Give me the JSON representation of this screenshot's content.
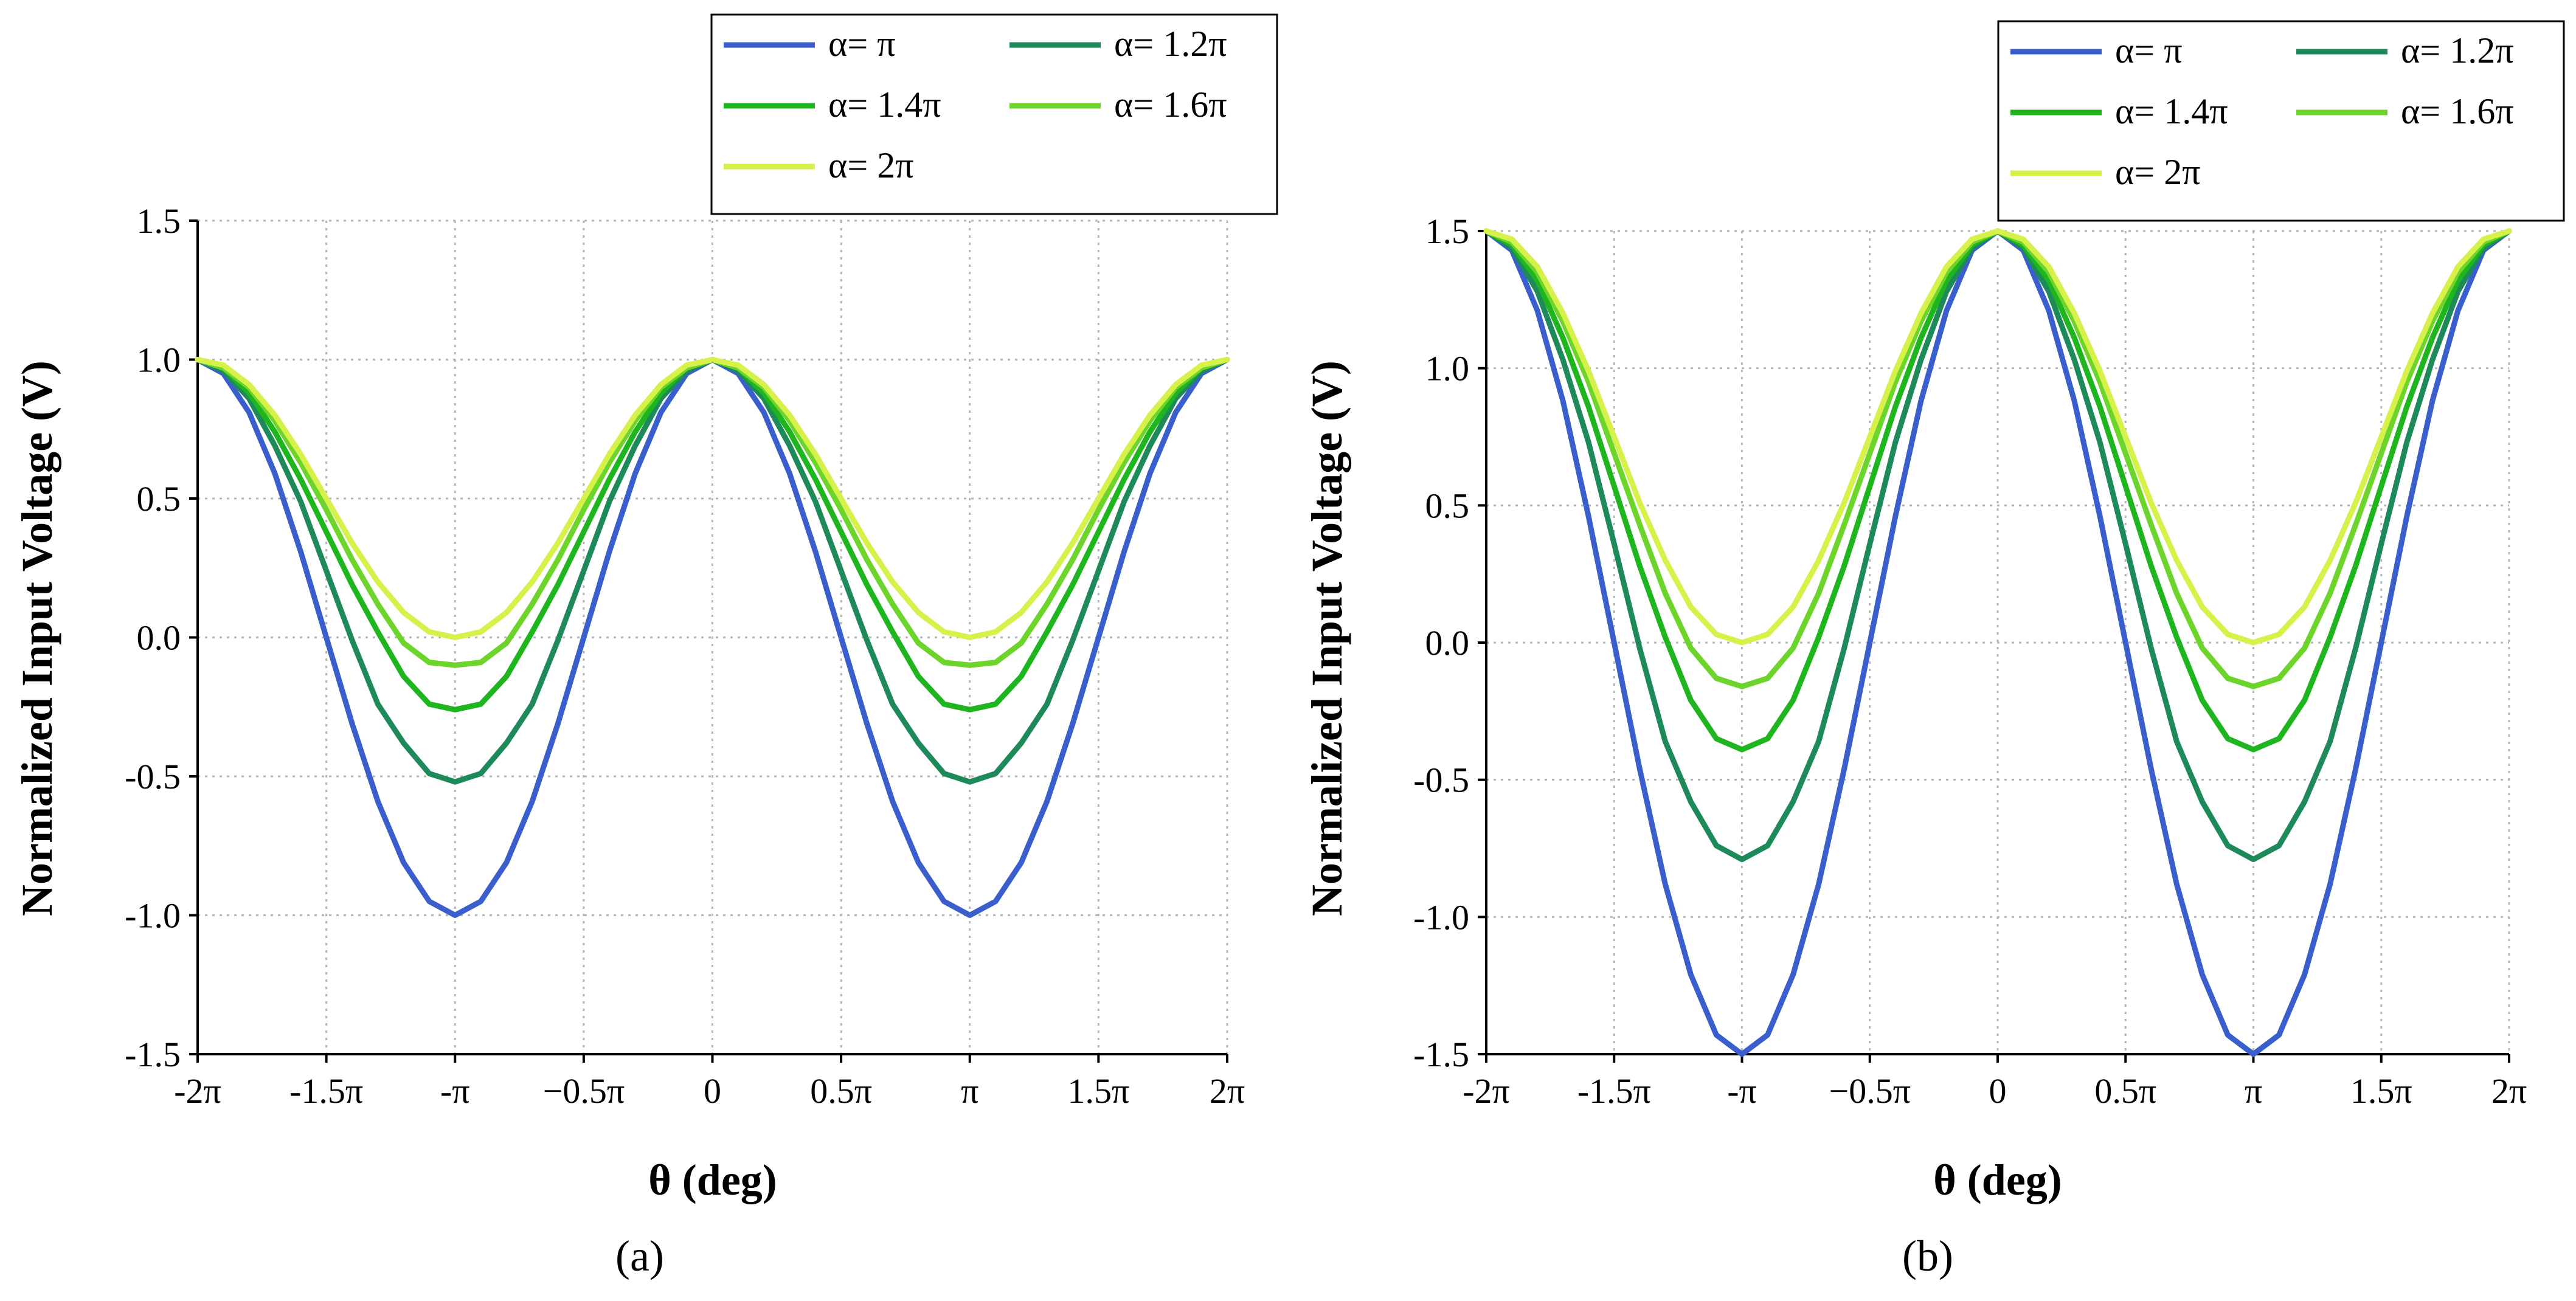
{
  "chart_data": [
    {
      "type": "line",
      "panel": "(a)",
      "panel_letter": "a",
      "xlabel": "θ (deg)",
      "ylabel": "Normalized Input Voltage (V)",
      "xlim": [
        -6.2832,
        6.2832
      ],
      "ylim": [
        -1.5,
        1.5
      ],
      "x_ticks": [
        -6.2832,
        -4.7124,
        -3.1416,
        -1.5708,
        0,
        1.5708,
        3.1416,
        4.7124,
        6.2832
      ],
      "x_tick_labels": [
        "-2π",
        "-1.5π",
        "-π",
        "−0.5π",
        "0",
        "0.5π",
        "π",
        "1.5π",
        "2π"
      ],
      "y_ticks": [
        1.5,
        1.0,
        0.5,
        0.0,
        -0.5,
        -1.0,
        -1.5
      ],
      "y_tick_labels": [
        "1.5",
        "1.0",
        "0.5",
        "0.0",
        "-0.5",
        "-1.0",
        "-1.5"
      ],
      "grid": true,
      "legend_position": "top-right",
      "x": [
        -6.2832,
        -5.969,
        -5.6549,
        -5.3407,
        -5.0265,
        -4.7124,
        -4.3982,
        -4.0841,
        -3.7699,
        -3.4558,
        -3.1416,
        -2.8274,
        -2.5133,
        -2.1991,
        -1.885,
        -1.5708,
        -1.2566,
        -0.9425,
        -0.6283,
        -0.3142,
        0,
        0.3142,
        0.6283,
        0.9425,
        1.2566,
        1.5708,
        1.885,
        2.1991,
        2.5133,
        2.8274,
        3.1416,
        3.4558,
        3.7699,
        4.0841,
        4.3982,
        4.7124,
        5.0265,
        5.3407,
        5.6549,
        5.969,
        6.2832
      ],
      "series": [
        {
          "name": "α= π",
          "color": "#3a5fcd",
          "values": [
            1.0,
            0.95,
            0.81,
            0.59,
            0.31,
            0.0,
            -0.31,
            -0.59,
            -0.81,
            -0.95,
            -1.0,
            -0.95,
            -0.81,
            -0.59,
            -0.31,
            0.0,
            0.31,
            0.59,
            0.81,
            0.95,
            1.0,
            0.95,
            0.81,
            0.59,
            0.31,
            0.0,
            -0.31,
            -0.59,
            -0.81,
            -0.95,
            -1.0,
            -0.95,
            -0.81,
            -0.59,
            -0.31,
            0.0,
            0.31,
            0.59,
            0.81,
            0.95,
            1.0
          ]
        },
        {
          "name": "α= 1.2π",
          "color": "#1e8a5a",
          "values": [
            1.0,
            0.96,
            0.86,
            0.69,
            0.49,
            0.24,
            -0.01,
            -0.24,
            -0.38,
            -0.49,
            -0.52,
            -0.49,
            -0.38,
            -0.24,
            -0.01,
            0.24,
            0.49,
            0.69,
            0.86,
            0.96,
            1.0,
            0.96,
            0.86,
            0.69,
            0.49,
            0.24,
            -0.01,
            -0.24,
            -0.38,
            -0.49,
            -0.52,
            -0.49,
            -0.38,
            -0.24,
            -0.01,
            0.24,
            0.49,
            0.69,
            0.86,
            0.96,
            1.0
          ]
        },
        {
          "name": "α= 1.4π",
          "color": "#1fb51f",
          "values": [
            1.0,
            0.97,
            0.88,
            0.74,
            0.57,
            0.38,
            0.19,
            0.02,
            -0.14,
            -0.24,
            -0.26,
            -0.24,
            -0.14,
            0.02,
            0.19,
            0.38,
            0.57,
            0.74,
            0.88,
            0.97,
            1.0,
            0.97,
            0.88,
            0.74,
            0.57,
            0.38,
            0.19,
            0.02,
            -0.14,
            -0.24,
            -0.26,
            -0.24,
            -0.14,
            0.02,
            0.19,
            0.38,
            0.57,
            0.74,
            0.88,
            0.97,
            1.0
          ]
        },
        {
          "name": "α= 1.6π",
          "color": "#6cd42a",
          "values": [
            1.0,
            0.97,
            0.9,
            0.78,
            0.63,
            0.46,
            0.28,
            0.12,
            -0.02,
            -0.09,
            -0.1,
            -0.09,
            -0.02,
            0.12,
            0.28,
            0.46,
            0.63,
            0.78,
            0.9,
            0.97,
            1.0,
            0.97,
            0.9,
            0.78,
            0.63,
            0.46,
            0.28,
            0.12,
            -0.02,
            -0.09,
            -0.1,
            -0.09,
            -0.02,
            0.12,
            0.28,
            0.46,
            0.63,
            0.78,
            0.9,
            0.97,
            1.0
          ]
        },
        {
          "name": "α= 2π",
          "color": "#d6f24a",
          "values": [
            1.0,
            0.98,
            0.91,
            0.8,
            0.66,
            0.5,
            0.34,
            0.2,
            0.09,
            0.02,
            0.0,
            0.02,
            0.09,
            0.2,
            0.34,
            0.5,
            0.66,
            0.8,
            0.91,
            0.98,
            1.0,
            0.98,
            0.91,
            0.8,
            0.66,
            0.5,
            0.34,
            0.2,
            0.09,
            0.02,
            0.0,
            0.02,
            0.09,
            0.2,
            0.34,
            0.5,
            0.66,
            0.8,
            0.91,
            0.98,
            1.0
          ]
        }
      ]
    },
    {
      "type": "line",
      "panel": "(b)",
      "panel_letter": "b",
      "xlabel": "θ (deg)",
      "ylabel": "Normalized Input Voltage (V)",
      "xlim": [
        -6.2832,
        6.2832
      ],
      "ylim": [
        -1.5,
        1.5
      ],
      "x_ticks": [
        -6.2832,
        -4.7124,
        -3.1416,
        -1.5708,
        0,
        1.5708,
        3.1416,
        4.7124,
        6.2832
      ],
      "x_tick_labels": [
        "-2π",
        "-1.5π",
        "-π",
        "−0.5π",
        "0",
        "0.5π",
        "π",
        "1.5π",
        "2π"
      ],
      "y_ticks": [
        1.5,
        1.0,
        0.5,
        0.0,
        -0.5,
        -1.0,
        -1.5
      ],
      "y_tick_labels": [
        "1.5",
        "1.0",
        "0.5",
        "0.0",
        "-0.5",
        "-1.0",
        "-1.5"
      ],
      "grid": true,
      "legend_position": "top-right",
      "x": [
        -6.2832,
        -5.969,
        -5.6549,
        -5.3407,
        -5.0265,
        -4.7124,
        -4.3982,
        -4.0841,
        -3.7699,
        -3.4558,
        -3.1416,
        -2.8274,
        -2.5133,
        -2.1991,
        -1.885,
        -1.5708,
        -1.2566,
        -0.9425,
        -0.6283,
        -0.3142,
        0,
        0.3142,
        0.6283,
        0.9425,
        1.2566,
        1.5708,
        1.885,
        2.1991,
        2.5133,
        2.8274,
        3.1416,
        3.4558,
        3.7699,
        4.0841,
        4.3982,
        4.7124,
        5.0265,
        5.3407,
        5.6549,
        5.969,
        6.2832
      ],
      "series": [
        {
          "name": "α= π",
          "color": "#3a5fcd",
          "values": [
            1.5,
            1.43,
            1.21,
            0.88,
            0.46,
            0.0,
            -0.46,
            -0.88,
            -1.21,
            -1.43,
            -1.5,
            -1.43,
            -1.21,
            -0.88,
            -0.46,
            0.0,
            0.46,
            0.88,
            1.21,
            1.43,
            1.5,
            1.43,
            1.21,
            0.88,
            0.46,
            0.0,
            -0.46,
            -0.88,
            -1.21,
            -1.43,
            -1.5,
            -1.43,
            -1.21,
            -0.88,
            -0.46,
            0.0,
            0.46,
            0.88,
            1.21,
            1.43,
            1.5
          ]
        },
        {
          "name": "α= 1.2π",
          "color": "#1e8a5a",
          "values": [
            1.5,
            1.44,
            1.28,
            1.03,
            0.73,
            0.36,
            -0.02,
            -0.36,
            -0.58,
            -0.74,
            -0.79,
            -0.74,
            -0.58,
            -0.36,
            -0.02,
            0.36,
            0.73,
            1.03,
            1.28,
            1.44,
            1.5,
            1.44,
            1.28,
            1.03,
            0.73,
            0.36,
            -0.02,
            -0.36,
            -0.58,
            -0.74,
            -0.79,
            -0.74,
            -0.58,
            -0.36,
            -0.02,
            0.36,
            0.73,
            1.03,
            1.28,
            1.44,
            1.5
          ]
        },
        {
          "name": "α= 1.4π",
          "color": "#1fb51f",
          "values": [
            1.5,
            1.45,
            1.32,
            1.11,
            0.86,
            0.57,
            0.28,
            0.02,
            -0.21,
            -0.35,
            -0.39,
            -0.35,
            -0.21,
            0.02,
            0.28,
            0.57,
            0.86,
            1.11,
            1.32,
            1.45,
            1.5,
            1.45,
            1.32,
            1.11,
            0.86,
            0.57,
            0.28,
            0.02,
            -0.21,
            -0.35,
            -0.39,
            -0.35,
            -0.21,
            0.02,
            0.28,
            0.57,
            0.86,
            1.11,
            1.32,
            1.45,
            1.5
          ]
        },
        {
          "name": "α=  1.6π",
          "color": "#6cd42a",
          "values": [
            1.5,
            1.46,
            1.35,
            1.17,
            0.95,
            0.69,
            0.43,
            0.18,
            -0.02,
            -0.13,
            -0.16,
            -0.13,
            -0.02,
            0.18,
            0.43,
            0.69,
            0.95,
            1.17,
            1.35,
            1.46,
            1.5,
            1.46,
            1.35,
            1.17,
            0.95,
            0.69,
            0.43,
            0.18,
            -0.02,
            -0.13,
            -0.16,
            -0.13,
            -0.02,
            0.18,
            0.43,
            0.69,
            0.95,
            1.17,
            1.35,
            1.46,
            1.5
          ]
        },
        {
          "name": "α= 2π",
          "color": "#d6f24a",
          "values": [
            1.5,
            1.47,
            1.37,
            1.2,
            0.99,
            0.75,
            0.51,
            0.3,
            0.13,
            0.03,
            0.0,
            0.03,
            0.13,
            0.3,
            0.51,
            0.75,
            0.99,
            1.2,
            1.37,
            1.47,
            1.5,
            1.47,
            1.37,
            1.2,
            0.99,
            0.75,
            0.51,
            0.3,
            0.13,
            0.03,
            0.0,
            0.03,
            0.13,
            0.3,
            0.51,
            0.75,
            0.99,
            1.2,
            1.37,
            1.47,
            1.5
          ]
        }
      ]
    }
  ]
}
